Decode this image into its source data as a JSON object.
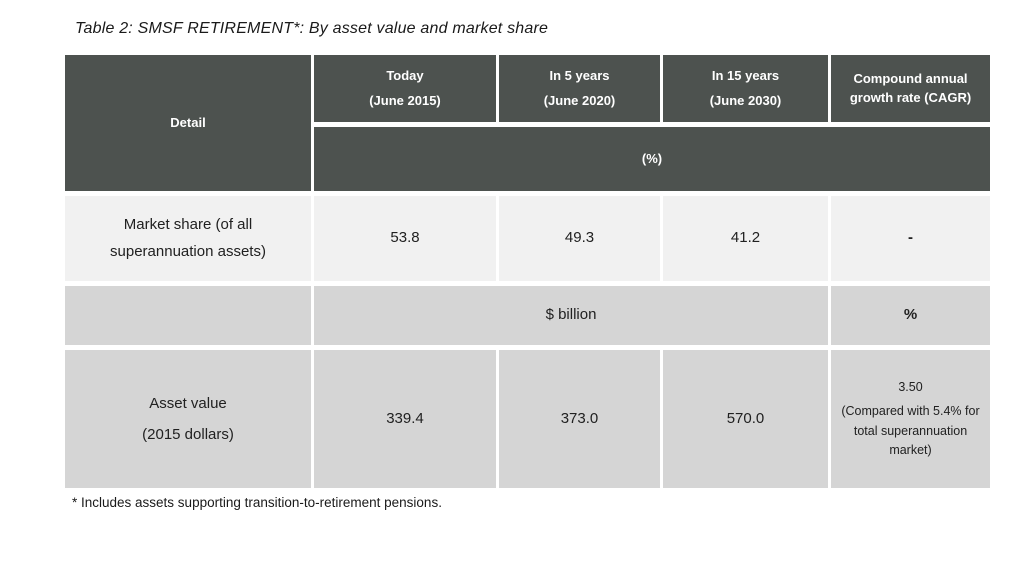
{
  "page": {
    "title": "Table 2: SMSF RETIREMENT*: By asset value and market share",
    "footnote": "* Includes assets supporting transition-to-retirement pensions."
  },
  "colors": {
    "header_bg": "#4d524f",
    "row_light_bg": "#f1f1f1",
    "row_medium_bg": "#d5d5d5",
    "header_text": "#ffffff",
    "body_text": "#212121"
  },
  "table": {
    "header": {
      "detail": "Detail",
      "today_line1": "Today",
      "today_line2": "(June 2015)",
      "in5_line1": "In 5 years",
      "in5_line2": "(June 2020)",
      "in15_line1": "In 15 years",
      "in15_line2": "(June 2030)",
      "cagr": "Compound annual growth rate (CAGR)",
      "percent_band": "(%)"
    },
    "market_share": {
      "label_line1": "Market share (of all",
      "label_line2": "superannuation assets)",
      "today": "53.8",
      "in5years": "49.3",
      "in15years": "41.2",
      "cagr": "-"
    },
    "units": {
      "billions": "$ billion",
      "percent": "%"
    },
    "asset_value": {
      "label_line1": "Asset value",
      "label_line2": "(2015 dollars)",
      "today": "339.4",
      "in5years": "373.0",
      "in15years": "570.0",
      "cagr_value": "3.50",
      "cagr_note": "(Compared with 5.4% for total superannuation market)"
    }
  }
}
